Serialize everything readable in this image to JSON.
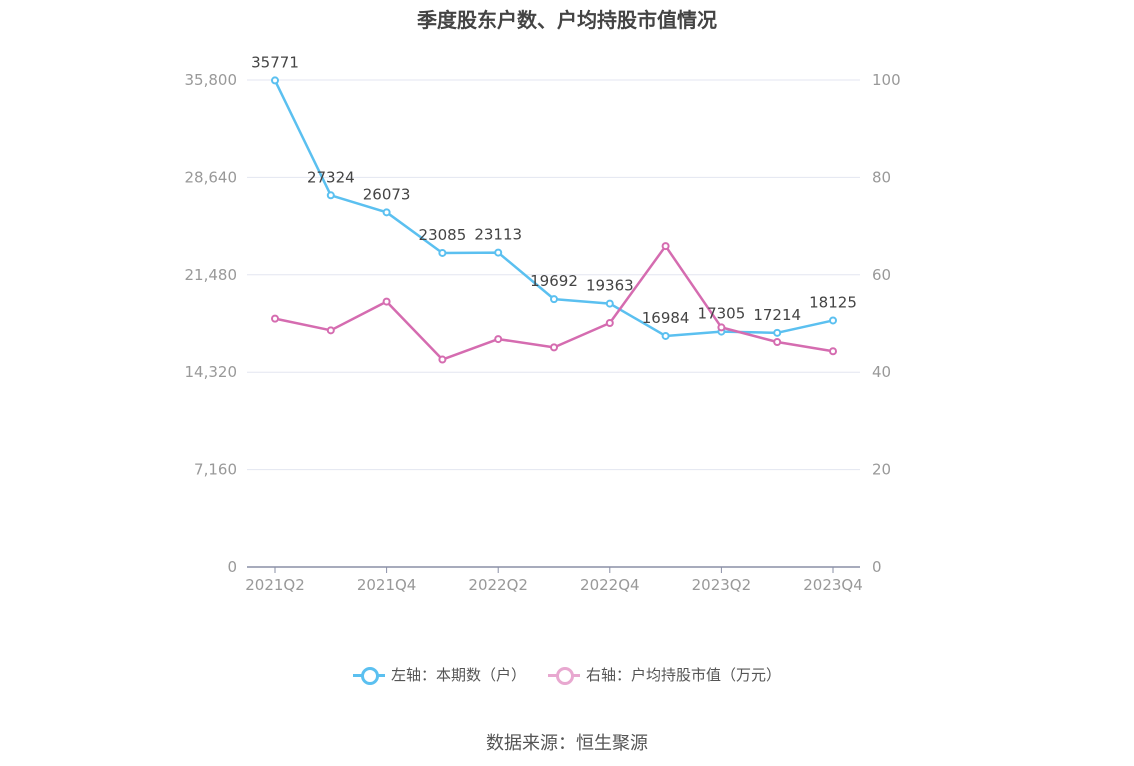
{
  "title": "季度股东户数、户均持股市值情况",
  "source": "数据来源：恒生聚源",
  "legend": [
    {
      "label": "左轴：本期数（户）",
      "color": "#5bc0f0"
    },
    {
      "label": "右轴：户均持股市值（万元）",
      "color": "#e88fc6"
    }
  ],
  "chart_data": {
    "type": "line",
    "categories": [
      "2021Q2",
      "2021Q3",
      "2021Q4",
      "2022Q1",
      "2022Q2",
      "2022Q3",
      "2022Q4",
      "2023Q1",
      "2023Q2",
      "2023Q3",
      "2023Q4"
    ],
    "x_tick_labels": [
      "2021Q2",
      "2021Q4",
      "2022Q2",
      "2022Q4",
      "2023Q2",
      "2023Q4"
    ],
    "left_axis": {
      "ticks": [
        "0",
        "7,160",
        "14,320",
        "21,480",
        "28,640",
        "35,800"
      ],
      "ylim": [
        0,
        35800
      ]
    },
    "right_axis": {
      "ticks": [
        "0",
        "20",
        "40",
        "60",
        "80",
        "100"
      ],
      "ylim": [
        0,
        100
      ]
    },
    "series": [
      {
        "name": "左轴：本期数（户）",
        "axis": "left",
        "color": "#5bc0f0",
        "values": [
          35771,
          27324,
          26073,
          23085,
          23113,
          19692,
          19363,
          16984,
          17305,
          17214,
          18125
        ],
        "labels": [
          "35771",
          "27324",
          "26073",
          "23085",
          "23113",
          "19692",
          "19363",
          "16984",
          "17305",
          "17214",
          "18125"
        ]
      },
      {
        "name": "右轴：户均持股市值（万元）",
        "axis": "right",
        "color": "#d56cb0",
        "values": [
          51.0,
          48.6,
          54.5,
          42.6,
          46.8,
          45.1,
          50.1,
          65.9,
          49.2,
          46.2,
          44.3
        ]
      }
    ],
    "grid": true
  }
}
